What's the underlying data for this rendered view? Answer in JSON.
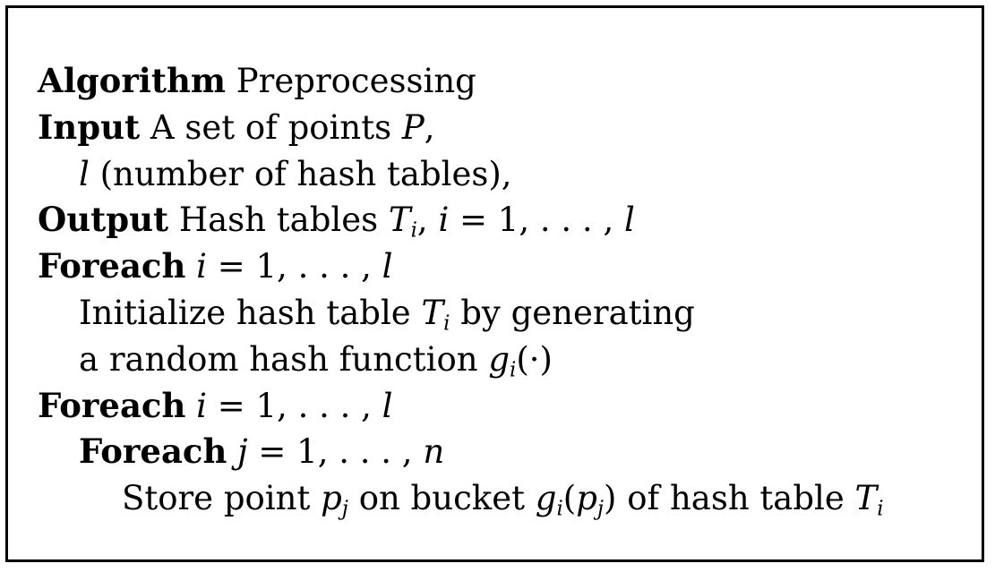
{
  "algorithm": {
    "kw_algorithm": "Algorithm",
    "name": "Preprocessing",
    "kw_input": "Input",
    "input_text": "A set of points",
    "input_var": "P",
    "input_comma": ",",
    "input_l": "l",
    "input_l_desc": "(number of hash tables),",
    "kw_output": "Output",
    "output_text": "Hash tables",
    "T": "T",
    "sub_i": "i",
    "comma": ",",
    "i": "i",
    "eq_range": "= 1, . . . ,",
    "l": "l",
    "kw_foreach": "Foreach",
    "init_text": "Initialize hash table",
    "by_generating": "by generating",
    "random_text": "a random hash function",
    "g": "g",
    "arg_dot": "(·)",
    "j": "j",
    "n": "n",
    "store_text": "Store point",
    "p": "p",
    "sub_j": "j",
    "on_bucket": "on bucket",
    "open_paren": "(",
    "close_paren": ")",
    "of_hash_table": "of hash table"
  }
}
